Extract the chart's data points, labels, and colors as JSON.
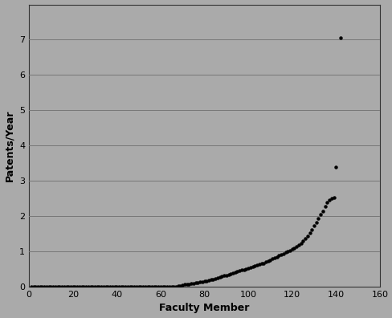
{
  "title": "",
  "xlabel": "Faculty Member",
  "ylabel": "Patents/Year",
  "xlim": [
    0,
    160
  ],
  "ylim": [
    0,
    8
  ],
  "xticks": [
    0,
    20,
    40,
    60,
    80,
    100,
    120,
    140,
    160
  ],
  "yticks": [
    0,
    1,
    2,
    3,
    4,
    5,
    6,
    7
  ],
  "background_color": "#aaaaaa",
  "dot_color": "#000000",
  "dot_size": 3,
  "data_points": [
    [
      1,
      0.0
    ],
    [
      2,
      0.0
    ],
    [
      3,
      0.0
    ],
    [
      4,
      0.0
    ],
    [
      5,
      0.0
    ],
    [
      6,
      0.0
    ],
    [
      7,
      0.0
    ],
    [
      8,
      0.0
    ],
    [
      9,
      0.0
    ],
    [
      10,
      0.0
    ],
    [
      11,
      0.0
    ],
    [
      12,
      0.0
    ],
    [
      13,
      0.0
    ],
    [
      14,
      0.0
    ],
    [
      15,
      0.0
    ],
    [
      16,
      0.0
    ],
    [
      17,
      0.0
    ],
    [
      18,
      0.0
    ],
    [
      19,
      0.0
    ],
    [
      20,
      0.0
    ],
    [
      21,
      0.0
    ],
    [
      22,
      0.0
    ],
    [
      23,
      0.0
    ],
    [
      24,
      0.0
    ],
    [
      25,
      0.0
    ],
    [
      26,
      0.0
    ],
    [
      27,
      0.0
    ],
    [
      28,
      0.0
    ],
    [
      29,
      0.0
    ],
    [
      30,
      0.0
    ],
    [
      31,
      0.0
    ],
    [
      32,
      0.0
    ],
    [
      33,
      0.0
    ],
    [
      34,
      0.0
    ],
    [
      35,
      0.0
    ],
    [
      36,
      0.0
    ],
    [
      37,
      0.0
    ],
    [
      38,
      0.0
    ],
    [
      39,
      0.0
    ],
    [
      40,
      0.0
    ],
    [
      41,
      0.0
    ],
    [
      42,
      0.0
    ],
    [
      43,
      0.0
    ],
    [
      44,
      0.0
    ],
    [
      45,
      0.0
    ],
    [
      46,
      0.0
    ],
    [
      47,
      0.0
    ],
    [
      48,
      0.0
    ],
    [
      49,
      0.0
    ],
    [
      50,
      0.0
    ],
    [
      51,
      0.0
    ],
    [
      52,
      0.0
    ],
    [
      53,
      0.0
    ],
    [
      54,
      0.0
    ],
    [
      55,
      0.0
    ],
    [
      56,
      0.0
    ],
    [
      57,
      0.0
    ],
    [
      58,
      0.0
    ],
    [
      59,
      0.0
    ],
    [
      60,
      0.0
    ],
    [
      61,
      0.0
    ],
    [
      62,
      0.0
    ],
    [
      63,
      0.0
    ],
    [
      64,
      0.0
    ],
    [
      65,
      0.0
    ],
    [
      66,
      0.0
    ],
    [
      67,
      0.01
    ],
    [
      68,
      0.02
    ],
    [
      69,
      0.03
    ],
    [
      70,
      0.05
    ],
    [
      71,
      0.06
    ],
    [
      72,
      0.07
    ],
    [
      73,
      0.08
    ],
    [
      74,
      0.09
    ],
    [
      75,
      0.1
    ],
    [
      76,
      0.11
    ],
    [
      77,
      0.12
    ],
    [
      78,
      0.13
    ],
    [
      79,
      0.14
    ],
    [
      80,
      0.16
    ],
    [
      81,
      0.17
    ],
    [
      82,
      0.18
    ],
    [
      83,
      0.2
    ],
    [
      84,
      0.21
    ],
    [
      85,
      0.23
    ],
    [
      86,
      0.25
    ],
    [
      87,
      0.27
    ],
    [
      88,
      0.29
    ],
    [
      89,
      0.31
    ],
    [
      90,
      0.33
    ],
    [
      91,
      0.35
    ],
    [
      92,
      0.37
    ],
    [
      93,
      0.39
    ],
    [
      94,
      0.41
    ],
    [
      95,
      0.43
    ],
    [
      96,
      0.45
    ],
    [
      97,
      0.47
    ],
    [
      98,
      0.49
    ],
    [
      99,
      0.51
    ],
    [
      100,
      0.53
    ],
    [
      101,
      0.55
    ],
    [
      102,
      0.57
    ],
    [
      103,
      0.59
    ],
    [
      104,
      0.61
    ],
    [
      105,
      0.63
    ],
    [
      106,
      0.65
    ],
    [
      107,
      0.67
    ],
    [
      108,
      0.7
    ],
    [
      109,
      0.73
    ],
    [
      110,
      0.76
    ],
    [
      111,
      0.79
    ],
    [
      112,
      0.82
    ],
    [
      113,
      0.85
    ],
    [
      114,
      0.88
    ],
    [
      115,
      0.91
    ],
    [
      116,
      0.94
    ],
    [
      117,
      0.97
    ],
    [
      118,
      1.0
    ],
    [
      119,
      1.03
    ],
    [
      120,
      1.06
    ],
    [
      121,
      1.1
    ],
    [
      122,
      1.14
    ],
    [
      123,
      1.18
    ],
    [
      124,
      1.23
    ],
    [
      125,
      1.3
    ],
    [
      126,
      1.37
    ],
    [
      127,
      1.44
    ],
    [
      128,
      1.52
    ],
    [
      129,
      1.62
    ],
    [
      130,
      1.72
    ],
    [
      131,
      1.82
    ],
    [
      132,
      1.93
    ],
    [
      133,
      2.04
    ],
    [
      134,
      2.15
    ],
    [
      135,
      2.28
    ],
    [
      136,
      2.38
    ],
    [
      137,
      2.45
    ],
    [
      138,
      2.5
    ],
    [
      139,
      2.52
    ],
    [
      140,
      3.4
    ],
    [
      142,
      7.05
    ]
  ]
}
